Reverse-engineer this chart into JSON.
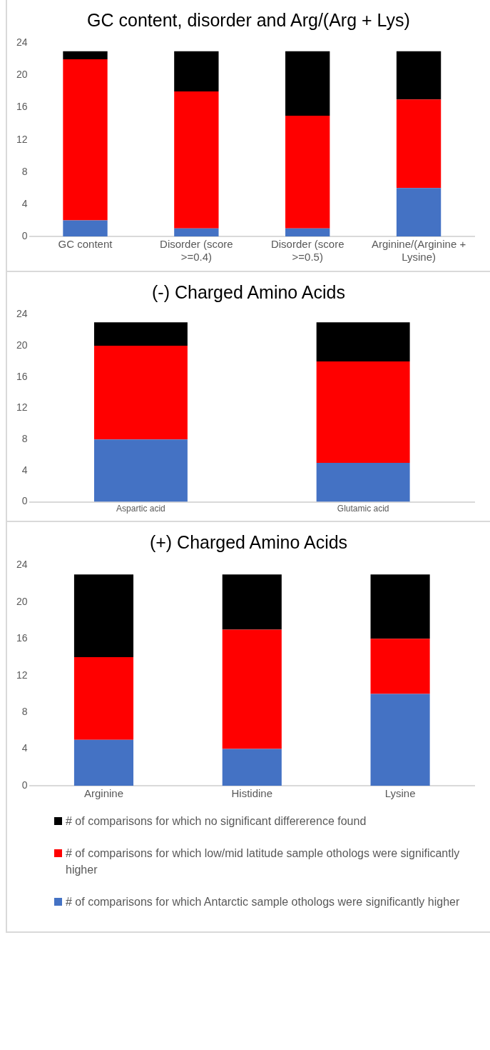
{
  "chart_data": [
    {
      "type": "bar",
      "title": "GC content, disorder and Arg/(Arg + Lys)",
      "categories": [
        "GC content",
        "Disorder (score >=0.4)",
        "Disorder (score >=0.5)",
        "Arginine/(Arginine + Lysine)"
      ],
      "stacked": true,
      "ylim": [
        0,
        24
      ],
      "yticks": [
        0,
        4,
        8,
        12,
        16,
        20,
        24
      ],
      "grid": false,
      "legend": false,
      "series": [
        {
          "color": "#4472c4",
          "values": [
            2,
            1,
            1,
            6
          ]
        },
        {
          "color": "#ff0000",
          "values": [
            20,
            17,
            14,
            11
          ]
        },
        {
          "color": "#000000",
          "values": [
            1,
            5,
            8,
            6
          ]
        }
      ]
    },
    {
      "type": "bar",
      "title": "(-) Charged Amino Acids",
      "categories": [
        "Aspartic acid",
        "Glutamic acid"
      ],
      "stacked": true,
      "ylim": [
        0,
        24
      ],
      "yticks": [
        0,
        4,
        8,
        12,
        16,
        20,
        24
      ],
      "grid": false,
      "legend": false,
      "series": [
        {
          "color": "#4472c4",
          "values": [
            8,
            5
          ]
        },
        {
          "color": "#ff0000",
          "values": [
            12,
            13
          ]
        },
        {
          "color": "#000000",
          "values": [
            3,
            5
          ]
        }
      ]
    },
    {
      "type": "bar",
      "title": "(+) Charged Amino Acids",
      "categories": [
        "Arginine",
        "Histidine",
        "Lysine"
      ],
      "stacked": true,
      "ylim": [
        0,
        24
      ],
      "yticks": [
        0,
        4,
        8,
        12,
        16,
        20,
        24
      ],
      "grid": false,
      "legend": "bottom",
      "series": [
        {
          "name": "# of comparisons for which Antarctic sample othologs were significantly higher",
          "color": "#4472c4",
          "values": [
            5,
            4,
            10
          ]
        },
        {
          "name": "# of comparisons for which low/mid latitude sample othologs were significantly higher",
          "color": "#ff0000",
          "values": [
            9,
            13,
            6
          ]
        },
        {
          "name": "# of comparisons for which no significant differerence found",
          "color": "#000000",
          "values": [
            9,
            6,
            7
          ]
        }
      ]
    }
  ]
}
